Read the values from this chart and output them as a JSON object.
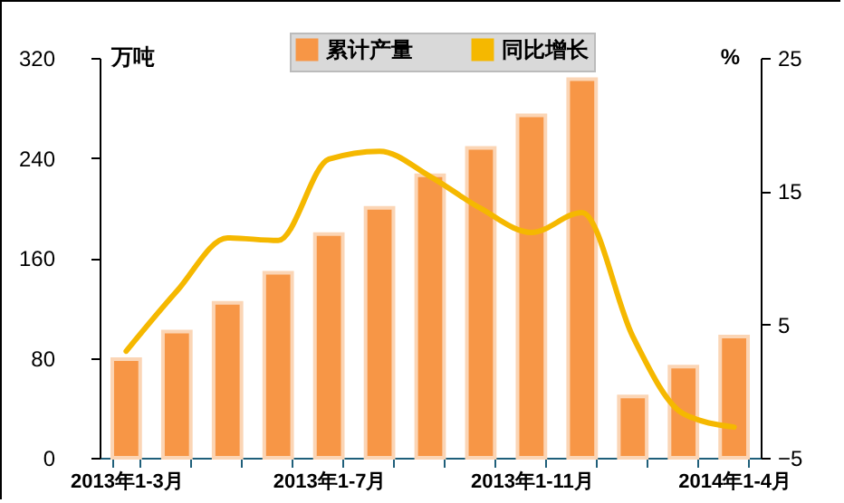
{
  "chart_data": {
    "type": "bar",
    "ylabel": "万吨",
    "y2label": "%",
    "categories": [
      "2013年1-3月",
      null,
      null,
      null,
      "2013年1-7月",
      null,
      null,
      null,
      "2013年1-11月",
      null,
      null,
      null,
      "2014年1-4月"
    ],
    "series": [
      {
        "name": "累计产量",
        "color": "#f79646",
        "values": [
          79,
          101,
          124,
          148,
          179,
          200,
          226,
          248,
          274,
          303,
          49,
          73,
          97
        ]
      },
      {
        "name": "同比增长",
        "type": "line",
        "axis": "y2",
        "color": "#f5b800",
        "values": [
          3.0,
          7.5,
          11.5,
          11.3,
          17.4,
          18.0,
          16.1,
          13.7,
          11.9,
          13.4,
          4.1,
          -1.7,
          -2.7
        ]
      }
    ],
    "ylim": [
      0,
      320
    ],
    "yticks": [
      0,
      80,
      160,
      240,
      320
    ],
    "y2lim": [
      -5,
      25
    ],
    "y2ticks": [
      -5,
      5,
      15,
      25
    ],
    "legend": "top",
    "grid": false
  }
}
